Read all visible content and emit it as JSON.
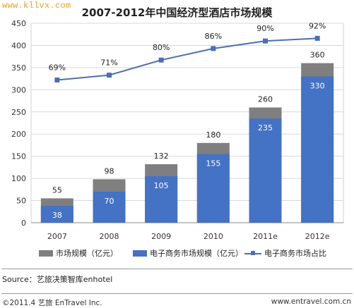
{
  "watermark": "www.kllvx.com",
  "chart_data": {
    "type": "bar",
    "title": "2007-2012年中国经济型酒店市场规模",
    "categories": [
      "2007",
      "2008",
      "2009",
      "2010",
      "2011e",
      "2012e"
    ],
    "series": [
      {
        "name": "市场规模（亿元）",
        "type": "bar",
        "color": "#7f7f7f",
        "values": [
          55,
          98,
          132,
          180,
          260,
          360
        ]
      },
      {
        "name": "电子商务市场规模（亿元）",
        "type": "bar",
        "color": "#4472c4",
        "values": [
          38,
          70,
          105,
          155,
          235,
          330
        ]
      },
      {
        "name": "电子商务市场占比",
        "type": "line",
        "color": "#4a6fb5",
        "values": [
          69,
          71,
          80,
          86,
          90,
          92
        ],
        "labels": [
          "69%",
          "71%",
          "80%",
          "86%",
          "90%",
          "92%"
        ]
      }
    ],
    "ylim": [
      0,
      450
    ],
    "yticks": [
      0,
      50,
      100,
      150,
      200,
      250,
      300,
      350,
      400,
      450
    ],
    "line_points_on_axis": [
      322,
      333,
      367,
      393,
      410,
      416
    ],
    "grid": true,
    "legend": "bottom"
  },
  "source": "Source：艺旅决策智库enhotel",
  "footer": {
    "copyright": "©2011.4 艺旅 EnTravel Inc.",
    "url": "www.entravel.com.cn"
  }
}
